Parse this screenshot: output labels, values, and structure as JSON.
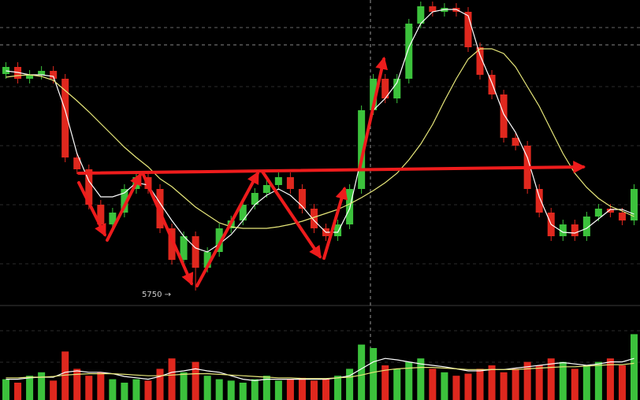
{
  "chart_data": {
    "type": "candlestick",
    "annotation": "5750 →",
    "up_color": "#3cc23c",
    "down_color": "#e0281e",
    "ylim": [
      5700,
      6488
    ],
    "vlim": [
      0,
      100
    ],
    "open": [
      6300,
      6318,
      6288,
      6298,
      6308,
      6288,
      6088,
      6058,
      5968,
      5918,
      5948,
      6008,
      6038,
      6008,
      5908,
      5828,
      5888,
      5808,
      5848,
      5908,
      5928,
      5968,
      5998,
      6018,
      6038,
      6008,
      5958,
      5908,
      5888,
      5918,
      6008,
      6208,
      6288,
      6238,
      6288,
      6428,
      6472,
      6458,
      6468,
      6458,
      6368,
      6298,
      6248,
      6138,
      6118,
      6008,
      5948,
      5888,
      5918,
      5888,
      5938,
      5958,
      5948,
      5928
    ],
    "high": [
      6330,
      6330,
      6310,
      6320,
      6320,
      6300,
      6100,
      6070,
      5980,
      5960,
      6020,
      6050,
      6050,
      6020,
      5920,
      5900,
      5900,
      5860,
      5920,
      5940,
      5980,
      6010,
      6030,
      6050,
      6050,
      6020,
      5970,
      5920,
      5930,
      6020,
      6220,
      6300,
      6300,
      6300,
      6440,
      6484,
      6484,
      6480,
      6480,
      6470,
      6380,
      6310,
      6260,
      6150,
      6130,
      6020,
      5960,
      5930,
      5930,
      5950,
      5970,
      5970,
      5960,
      6020
    ],
    "low": [
      6288,
      6276,
      6276,
      6286,
      6276,
      6076,
      6046,
      5956,
      5906,
      5906,
      5936,
      5996,
      5996,
      5896,
      5816,
      5816,
      5750,
      5796,
      5836,
      5896,
      5916,
      5956,
      5986,
      6006,
      5996,
      5946,
      5896,
      5876,
      5876,
      5906,
      5996,
      6196,
      6226,
      6226,
      6276,
      6416,
      6446,
      6446,
      6446,
      6356,
      6286,
      6236,
      6126,
      6106,
      5996,
      5936,
      5876,
      5876,
      5876,
      5876,
      5926,
      5936,
      5916,
      5916
    ],
    "close": [
      6318,
      6288,
      6298,
      6308,
      6288,
      6088,
      6058,
      5968,
      5918,
      5948,
      6008,
      6038,
      6008,
      5908,
      5828,
      5888,
      5808,
      5848,
      5908,
      5928,
      5968,
      5998,
      6018,
      6038,
      6008,
      5958,
      5908,
      5888,
      5918,
      6008,
      6208,
      6288,
      6238,
      6288,
      6428,
      6472,
      6458,
      6468,
      6458,
      6368,
      6298,
      6248,
      6138,
      6118,
      6008,
      5948,
      5888,
      5918,
      5888,
      5938,
      5958,
      5948,
      5928,
      6008
    ],
    "ma_lines": [
      {
        "color": "#ffffff",
        "values": [
          6308,
          6304,
          6298,
          6298,
          6294,
          6208,
          6098,
          6028,
          5988,
          5988,
          5998,
          6024,
          6018,
          5972,
          5928,
          5888,
          5858,
          5848,
          5868,
          5892,
          5928,
          5968,
          5992,
          6008,
          5992,
          5964,
          5928,
          5898,
          5898,
          5958,
          6088,
          6208,
          6238,
          6278,
          6368,
          6428,
          6458,
          6464,
          6464,
          6448,
          6348,
          6278,
          6198,
          6152,
          6088,
          5988,
          5918,
          5898,
          5896,
          5908,
          5932,
          5956,
          5956,
          5944
        ]
      },
      {
        "color": "#e8e87a",
        "values": [
          6292,
          6296,
          6298,
          6294,
          6284,
          6258,
          6232,
          6204,
          6174,
          6144,
          6114,
          6088,
          6064,
          6034,
          6014,
          5988,
          5962,
          5942,
          5922,
          5912,
          5908,
          5908,
          5908,
          5912,
          5918,
          5926,
          5936,
          5946,
          5956,
          5970,
          5986,
          6004,
          6024,
          6048,
          6082,
          6122,
          6172,
          6232,
          6288,
          6338,
          6364,
          6364,
          6352,
          6318,
          6268,
          6218,
          6158,
          6098,
          6048,
          6012,
          5984,
          5964,
          5952,
          5938
        ]
      }
    ],
    "volume": [
      30,
      25,
      35,
      40,
      28,
      70,
      45,
      35,
      40,
      30,
      25,
      30,
      28,
      45,
      60,
      40,
      55,
      35,
      30,
      28,
      25,
      30,
      35,
      28,
      30,
      32,
      28,
      30,
      35,
      45,
      80,
      75,
      50,
      45,
      55,
      60,
      45,
      40,
      35,
      38,
      45,
      50,
      40,
      45,
      55,
      50,
      60,
      55,
      45,
      50,
      55,
      60,
      50,
      95
    ],
    "volume_ma_lines": [
      {
        "color": "#ffffff",
        "values": [
          30,
          30,
          32,
          33,
          33,
          40,
          42,
          40,
          40,
          38,
          34,
          32,
          30,
          34,
          40,
          42,
          45,
          42,
          40,
          35,
          30,
          28,
          30,
          30,
          30,
          30,
          30,
          30,
          32,
          35,
          45,
          55,
          60,
          58,
          55,
          52,
          50,
          48,
          45,
          42,
          42,
          44,
          44,
          46,
          48,
          50,
          52,
          54,
          52,
          50,
          52,
          55,
          55,
          60
        ]
      },
      {
        "color": "#e8e87a",
        "values": [
          32,
          32,
          33,
          33,
          34,
          36,
          37,
          38,
          38,
          38,
          37,
          36,
          35,
          35,
          36,
          37,
          38,
          38,
          37,
          36,
          35,
          34,
          33,
          32,
          32,
          31,
          31,
          31,
          32,
          33,
          36,
          40,
          43,
          45,
          46,
          47,
          47,
          46,
          45,
          44,
          44,
          44,
          44,
          44,
          45,
          46,
          47,
          48,
          48,
          49,
          50,
          51,
          51,
          53
        ]
      }
    ]
  }
}
